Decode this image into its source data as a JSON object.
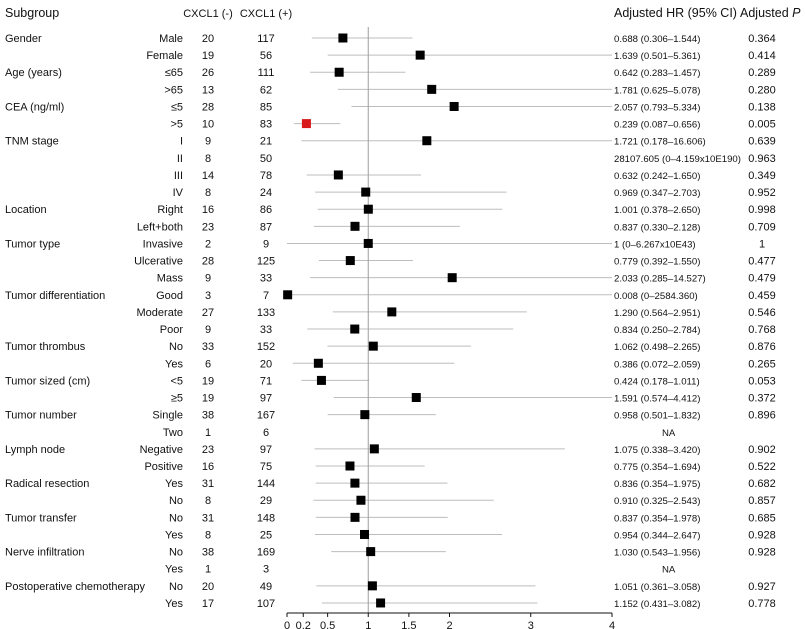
{
  "headers": {
    "subgroup": "Subgroup",
    "neg": "CXCL1 (-)",
    "pos": "CXCL1 (+)",
    "hr": "Adjusted HR (95% CI)",
    "p_prefix": "Adjusted ",
    "p_letter": "P"
  },
  "chart_data": {
    "type": "forest",
    "xlim": [
      0,
      4
    ],
    "reference_line": 1,
    "x_ticks": [
      0,
      0.2,
      0.5,
      1,
      1.5,
      2,
      3,
      4
    ],
    "x_tick_labels": [
      "0",
      "0.2",
      "0.5",
      "1",
      "1.5",
      "2",
      "3",
      "4"
    ],
    "highlight_color": "#d7191c",
    "marker_color": "#000000",
    "ci_color": "#bdbdbd",
    "rows": [
      {
        "group": "Gender",
        "level": "Male",
        "neg": "20",
        "pos": "117",
        "hr_text": "0.688 (0.306–1.544)",
        "p": "0.364",
        "hr": 0.688,
        "lo": 0.306,
        "hi": 1.544
      },
      {
        "group": "",
        "level": "Female",
        "neg": "19",
        "pos": "56",
        "hr_text": "1.639 (0.501–5.361)",
        "p": "0.414",
        "hr": 1.639,
        "lo": 0.501,
        "hi": 5.361
      },
      {
        "group": "Age (years)",
        "level": "≤65",
        "neg": "26",
        "pos": "111",
        "hr_text": "0.642 (0.283–1.457)",
        "p": "0.289",
        "hr": 0.642,
        "lo": 0.283,
        "hi": 1.457
      },
      {
        "group": "",
        "level": ">65",
        "neg": "13",
        "pos": "62",
        "hr_text": "1.781 (0.625–5.078)",
        "p": "0.280",
        "hr": 1.781,
        "lo": 0.625,
        "hi": 5.078
      },
      {
        "group": "CEA (ng/ml)",
        "level": "≤5",
        "neg": "28",
        "pos": "85",
        "hr_text": "2.057 (0.793–5.334)",
        "p": "0.138",
        "hr": 2.057,
        "lo": 0.793,
        "hi": 5.334
      },
      {
        "group": "",
        "level": ">5",
        "neg": "10",
        "pos": "83",
        "hr_text": "0.239 (0.087–0.656)",
        "p": "0.005",
        "hr": 0.239,
        "lo": 0.087,
        "hi": 0.656,
        "highlight": true
      },
      {
        "group": "TNM stage",
        "level": "I",
        "neg": "9",
        "pos": "21",
        "hr_text": "1.721 (0.178–16.606)",
        "p": "0.639",
        "hr": 1.721,
        "lo": 0.178,
        "hi": 16.606
      },
      {
        "group": "",
        "level": "II",
        "neg": "8",
        "pos": "50",
        "hr_text": "28107.605 (0–4.159x10E190)",
        "p": "0.963"
      },
      {
        "group": "",
        "level": "III",
        "neg": "14",
        "pos": "78",
        "hr_text": "0.632 (0.242–1.650)",
        "p": "0.349",
        "hr": 0.632,
        "lo": 0.242,
        "hi": 1.65
      },
      {
        "group": "",
        "level": "IV",
        "neg": "8",
        "pos": "24",
        "hr_text": "0.969 (0.347–2.703)",
        "p": "0.952",
        "hr": 0.969,
        "lo": 0.347,
        "hi": 2.703
      },
      {
        "group": "Location",
        "level": "Right",
        "neg": "16",
        "pos": "86",
        "hr_text": "1.001 (0.378–2.650)",
        "p": "0.998",
        "hr": 1.001,
        "lo": 0.378,
        "hi": 2.65
      },
      {
        "group": "",
        "level": "Left+both",
        "neg": "23",
        "pos": "87",
        "hr_text": "0.837 (0.330–2.128)",
        "p": "0.709",
        "hr": 0.837,
        "lo": 0.33,
        "hi": 2.128
      },
      {
        "group": "Tumor type",
        "level": "Invasive",
        "neg": "2",
        "pos": "9",
        "hr_text": "1 (0–6.267x10E43)",
        "p": "1",
        "hr": 1,
        "lo": 0,
        "hi": 6.267e+43
      },
      {
        "group": "",
        "level": "Ulcerative",
        "neg": "28",
        "pos": "125",
        "hr_text": "0.779 (0.392–1.550)",
        "p": "0.477",
        "hr": 0.779,
        "lo": 0.392,
        "hi": 1.55
      },
      {
        "group": "",
        "level": "Mass",
        "neg": "9",
        "pos": "33",
        "hr_text": "2.033 (0.285–14.527)",
        "p": "0.479",
        "hr": 2.033,
        "lo": 0.285,
        "hi": 14.527
      },
      {
        "group": "Tumor differentiation",
        "level": "Good",
        "neg": "3",
        "pos": "7",
        "hr_text": "0.008 (0–2584.360)",
        "p": "0.459",
        "hr": 0.008,
        "lo": 0,
        "hi": 2584.36
      },
      {
        "group": "",
        "level": "Moderate",
        "neg": "27",
        "pos": "133",
        "hr_text": "1.290 (0.564–2.951)",
        "p": "0.546",
        "hr": 1.29,
        "lo": 0.564,
        "hi": 2.951
      },
      {
        "group": "",
        "level": "Poor",
        "neg": "9",
        "pos": "33",
        "hr_text": "0.834 (0.250–2.784)",
        "p": "0.768",
        "hr": 0.834,
        "lo": 0.25,
        "hi": 2.784
      },
      {
        "group": "Tumor thrombus",
        "level": "No",
        "neg": "33",
        "pos": "152",
        "hr_text": "1.062 (0.498–2.265)",
        "p": "0.876",
        "hr": 1.062,
        "lo": 0.498,
        "hi": 2.265
      },
      {
        "group": "",
        "level": "Yes",
        "neg": "6",
        "pos": "20",
        "hr_text": "0.386 (0.072–2.059)",
        "p": "0.265",
        "hr": 0.386,
        "lo": 0.072,
        "hi": 2.059
      },
      {
        "group": "Tumor sized (cm)",
        "level": "<5",
        "neg": "19",
        "pos": "71",
        "hr_text": "0.424 (0.178–1.011)",
        "p": "0.053",
        "hr": 0.424,
        "lo": 0.178,
        "hi": 1.011
      },
      {
        "group": "",
        "level": "≥5",
        "neg": "19",
        "pos": "97",
        "hr_text": "1.591 (0.574–4.412)",
        "p": "0.372",
        "hr": 1.591,
        "lo": 0.574,
        "hi": 4.412
      },
      {
        "group": "Tumor number",
        "level": "Single",
        "neg": "38",
        "pos": "167",
        "hr_text": "0.958 (0.501–1.832)",
        "p": "0.896",
        "hr": 0.958,
        "lo": 0.501,
        "hi": 1.832
      },
      {
        "group": "",
        "level": "Two",
        "neg": "1",
        "pos": "6",
        "hr_text": "NA",
        "p": ""
      },
      {
        "group": "Lymph node",
        "level": "Negative",
        "neg": "23",
        "pos": "97",
        "hr_text": "1.075 (0.338–3.420)",
        "p": "0.902",
        "hr": 1.075,
        "lo": 0.338,
        "hi": 3.42
      },
      {
        "group": "",
        "level": "Positive",
        "neg": "16",
        "pos": "75",
        "hr_text": "0.775 (0.354–1.694)",
        "p": "0.522",
        "hr": 0.775,
        "lo": 0.354,
        "hi": 1.694
      },
      {
        "group": "Radical resection",
        "level": "Yes",
        "neg": "31",
        "pos": "144",
        "hr_text": "0.836 (0.354–1.975)",
        "p": "0.682",
        "hr": 0.836,
        "lo": 0.354,
        "hi": 1.975
      },
      {
        "group": "",
        "level": "No",
        "neg": "8",
        "pos": "29",
        "hr_text": "0.910 (0.325–2.543)",
        "p": "0.857",
        "hr": 0.91,
        "lo": 0.325,
        "hi": 2.543
      },
      {
        "group": "Tumor transfer",
        "level": "No",
        "neg": "31",
        "pos": "148",
        "hr_text": "0.837 (0.354–1.978)",
        "p": "0.685",
        "hr": 0.837,
        "lo": 0.354,
        "hi": 1.978
      },
      {
        "group": "",
        "level": "Yes",
        "neg": "8",
        "pos": "25",
        "hr_text": "0.954 (0.344–2.647)",
        "p": "0.928",
        "hr": 0.954,
        "lo": 0.344,
        "hi": 2.647
      },
      {
        "group": "Nerve infiltration",
        "level": "No",
        "neg": "38",
        "pos": "169",
        "hr_text": "1.030 (0.543–1.956)",
        "p": "0.928",
        "hr": 1.03,
        "lo": 0.543,
        "hi": 1.956
      },
      {
        "group": "",
        "level": "Yes",
        "neg": "1",
        "pos": "3",
        "hr_text": "NA",
        "p": ""
      },
      {
        "group": "Postoperative chemotherapy",
        "level": "No",
        "neg": "20",
        "pos": "49",
        "hr_text": "1.051 (0.361–3.058)",
        "p": "0.927",
        "hr": 1.051,
        "lo": 0.361,
        "hi": 3.058
      },
      {
        "group": "",
        "level": "Yes",
        "neg": "17",
        "pos": "107",
        "hr_text": "1.152 (0.431–3.082)",
        "p": "0.778",
        "hr": 1.152,
        "lo": 0.431,
        "hi": 3.082
      }
    ]
  }
}
